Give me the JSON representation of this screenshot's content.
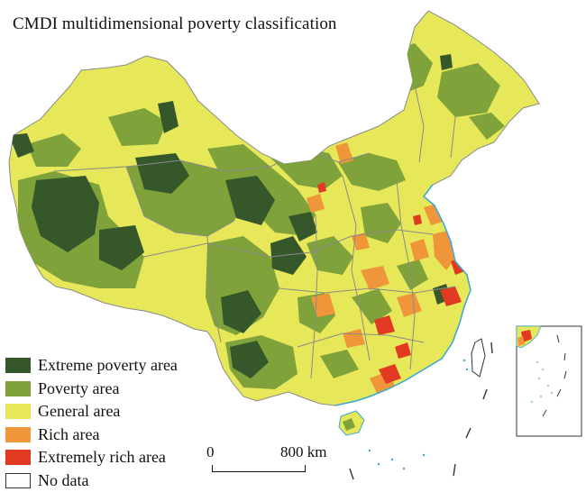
{
  "title": "CMDI multidimensional poverty classification",
  "legend": [
    {
      "label": "Extreme poverty area",
      "color": "#35572a"
    },
    {
      "label": "Poverty area",
      "color": "#7fa23a"
    },
    {
      "label": "General area",
      "color": "#e6e85a"
    },
    {
      "label": "Rich area",
      "color": "#f0963a"
    },
    {
      "label": "Extremely rich area",
      "color": "#e23a22"
    },
    {
      "label": "No data",
      "color": "#ffffff"
    }
  ],
  "scale": {
    "start": "0",
    "end": "800 km"
  },
  "colors": {
    "boundary": "#8a8a8a",
    "coast": "#3aa6d8",
    "outline": "#333333"
  }
}
